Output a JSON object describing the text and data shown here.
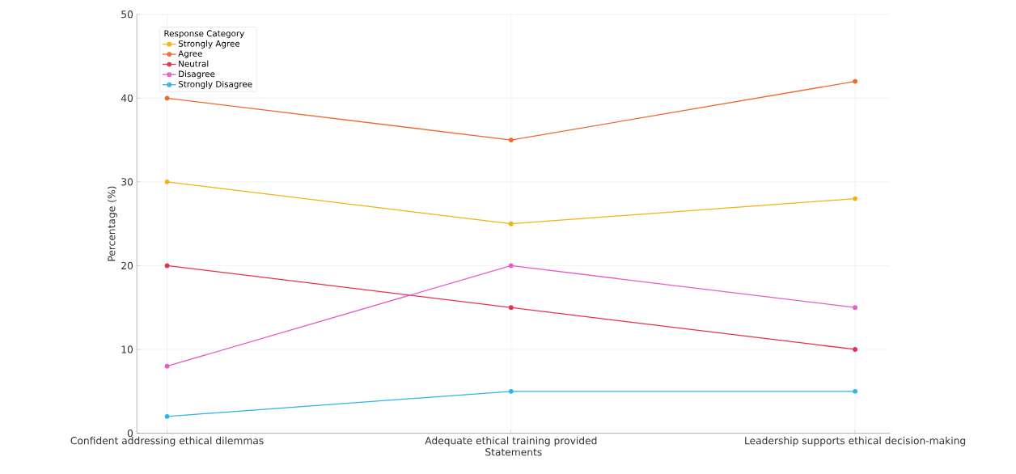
{
  "chart_data": {
    "type": "line",
    "xlabel": "Statements",
    "ylabel": "Percentage (%)",
    "legend_title": "Response Category",
    "categories": [
      "Confident addressing ethical dilemmas",
      "Adequate ethical training provided",
      "Leadership supports ethical decision-making"
    ],
    "series": [
      {
        "name": "Strongly Agree",
        "color": "#f0b312",
        "values": [
          30,
          25,
          28
        ]
      },
      {
        "name": "Agree",
        "color": "#ee6a30",
        "values": [
          40,
          35,
          42
        ]
      },
      {
        "name": "Neutral",
        "color": "#e6304f",
        "values": [
          20,
          15,
          10
        ]
      },
      {
        "name": "Disagree",
        "color": "#e65cc4",
        "values": [
          8,
          20,
          15
        ]
      },
      {
        "name": "Strongly Disagree",
        "color": "#2eb4e6",
        "values": [
          2,
          5,
          5
        ]
      }
    ],
    "ylim": [
      0,
      50
    ],
    "yticks": [
      0,
      10,
      20,
      30,
      40,
      50
    ],
    "grid": true,
    "legend": "top left",
    "marker": "circle",
    "line_style": "solid"
  }
}
